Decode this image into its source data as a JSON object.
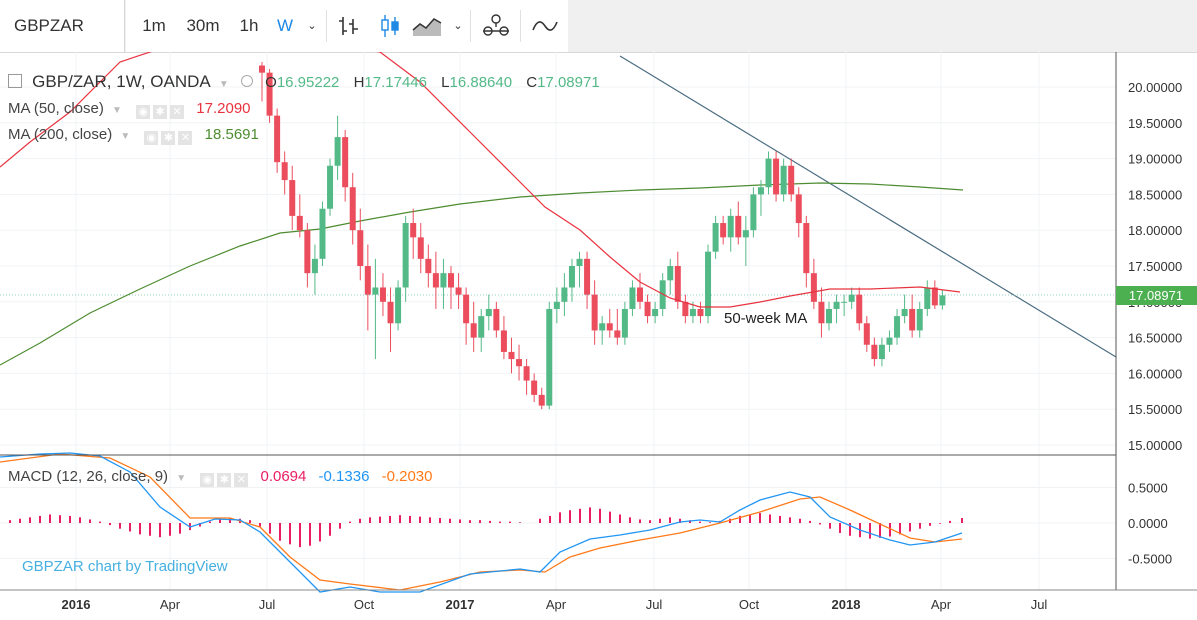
{
  "toolbar": {
    "symbol": "GBPZAR",
    "intervals": [
      "1m",
      "30m",
      "1h",
      "W"
    ],
    "active_interval": "W",
    "icons": [
      "bar-chart-icon",
      "candlestick-icon",
      "area-chart-icon",
      "compare-icon",
      "indicator-icon"
    ]
  },
  "legend": {
    "title": "GBP/ZAR, 1W, OANDA",
    "o_label": "O",
    "o_value": "16.95222",
    "h_label": "H",
    "h_value": "17.17446",
    "l_label": "L",
    "l_value": "16.88640",
    "c_label": "C",
    "c_value": "17.08971",
    "ma50_label": "MA (50, close)",
    "ma50_value": "17.2090",
    "ma200_label": "MA (200, close)",
    "ma200_value": "18.5691",
    "macd_label": "MACD (12, 26, close, 9)",
    "macd_hist": "0.0694",
    "macd_line": "-0.1336",
    "macd_signal": "-0.2030"
  },
  "annotation": "50-week MA",
  "watermark": "GBPZAR chart by TradingView",
  "colors": {
    "up": "#53b987",
    "down": "#eb4d5c",
    "ma50": "#e8333f",
    "ma200": "#4d8c30",
    "macd": "#2196f3",
    "signal": "#ff7a1a",
    "hist": "#e91e63",
    "trend": "#4b6c80",
    "price_label_bg": "#4caf50"
  },
  "chart_data": {
    "type": "candlestick",
    "price_axis_ticks": [
      "15.00000",
      "15.50000",
      "16.00000",
      "16.50000",
      "17.00000",
      "17.50000",
      "18.00000",
      "18.50000",
      "19.00000",
      "19.50000",
      "20.00000"
    ],
    "macd_axis_ticks": [
      "-0.5000",
      "0.0000",
      "0.5000"
    ],
    "time_labels": [
      "2016",
      "Apr",
      "Jul",
      "Oct",
      "2017",
      "Apr",
      "Jul",
      "Oct",
      "2018",
      "Apr",
      "Jul"
    ],
    "last_price": "17.08971",
    "ylim": [
      14.9,
      20.3
    ],
    "candles": [
      [
        20.3,
        20.35,
        19.8,
        20.2
      ],
      [
        20.2,
        20.25,
        19.5,
        19.6
      ],
      [
        19.6,
        19.7,
        18.8,
        18.95
      ],
      [
        18.95,
        19.1,
        18.5,
        18.7
      ],
      [
        18.7,
        18.9,
        18.0,
        18.2
      ],
      [
        18.2,
        18.5,
        17.9,
        18.0
      ],
      [
        18.0,
        18.1,
        17.2,
        17.4
      ],
      [
        17.4,
        17.8,
        17.1,
        17.6
      ],
      [
        17.6,
        18.4,
        17.5,
        18.3
      ],
      [
        18.3,
        19.0,
        18.2,
        18.9
      ],
      [
        18.9,
        19.6,
        18.7,
        19.3
      ],
      [
        19.3,
        19.4,
        18.4,
        18.6
      ],
      [
        18.6,
        18.8,
        17.8,
        18.0
      ],
      [
        18.0,
        18.3,
        17.3,
        17.5
      ],
      [
        17.5,
        17.8,
        16.6,
        17.1
      ],
      [
        17.1,
        17.6,
        16.2,
        17.2
      ],
      [
        17.2,
        17.4,
        16.8,
        17.0
      ],
      [
        17.0,
        17.2,
        16.3,
        16.7
      ],
      [
        16.7,
        17.3,
        16.6,
        17.2
      ],
      [
        17.2,
        18.2,
        17.0,
        18.1
      ],
      [
        18.1,
        18.3,
        17.6,
        17.9
      ],
      [
        17.9,
        18.1,
        17.4,
        17.6
      ],
      [
        17.6,
        17.8,
        17.2,
        17.4
      ],
      [
        17.4,
        17.7,
        16.9,
        17.2
      ],
      [
        17.2,
        17.6,
        16.9,
        17.4
      ],
      [
        17.4,
        17.5,
        16.9,
        17.2
      ],
      [
        17.2,
        17.4,
        16.9,
        17.1
      ],
      [
        17.1,
        17.2,
        16.4,
        16.7
      ],
      [
        16.7,
        17.0,
        16.3,
        16.5
      ],
      [
        16.5,
        16.9,
        16.3,
        16.8
      ],
      [
        16.8,
        17.1,
        16.6,
        16.9
      ],
      [
        16.9,
        17.0,
        16.5,
        16.6
      ],
      [
        16.6,
        16.8,
        16.2,
        16.3
      ],
      [
        16.3,
        16.5,
        16.0,
        16.2
      ],
      [
        16.2,
        16.4,
        15.9,
        16.1
      ],
      [
        16.1,
        16.2,
        15.7,
        15.9
      ],
      [
        15.9,
        16.0,
        15.6,
        15.7
      ],
      [
        15.7,
        15.8,
        15.5,
        15.55
      ],
      [
        15.55,
        17.0,
        15.5,
        16.9
      ],
      [
        16.9,
        17.2,
        16.7,
        17.0
      ],
      [
        17.0,
        17.4,
        16.8,
        17.2
      ],
      [
        17.2,
        17.6,
        17.0,
        17.5
      ],
      [
        17.5,
        17.7,
        17.2,
        17.6
      ],
      [
        17.6,
        17.7,
        16.9,
        17.1
      ],
      [
        17.1,
        17.3,
        16.4,
        16.6
      ],
      [
        16.6,
        16.8,
        16.4,
        16.7
      ],
      [
        16.7,
        16.9,
        16.5,
        16.6
      ],
      [
        16.6,
        16.9,
        16.4,
        16.5
      ],
      [
        16.5,
        17.0,
        16.4,
        16.9
      ],
      [
        16.9,
        17.3,
        16.8,
        17.2
      ],
      [
        17.2,
        17.4,
        16.9,
        17.0
      ],
      [
        17.0,
        17.1,
        16.7,
        16.8
      ],
      [
        16.8,
        17.0,
        16.7,
        16.9
      ],
      [
        16.9,
        17.4,
        16.8,
        17.3
      ],
      [
        17.3,
        17.6,
        17.1,
        17.5
      ],
      [
        17.5,
        17.7,
        16.9,
        17.0
      ],
      [
        17.0,
        17.1,
        16.7,
        16.8
      ],
      [
        16.8,
        17.0,
        16.7,
        16.9
      ],
      [
        16.9,
        17.0,
        16.7,
        16.8
      ],
      [
        16.8,
        17.8,
        16.7,
        17.7
      ],
      [
        17.7,
        18.2,
        17.6,
        18.1
      ],
      [
        18.1,
        18.2,
        17.8,
        17.9
      ],
      [
        17.9,
        18.3,
        17.7,
        18.2
      ],
      [
        18.2,
        18.4,
        17.8,
        17.9
      ],
      [
        17.9,
        18.2,
        17.5,
        18.0
      ],
      [
        18.0,
        18.6,
        17.9,
        18.5
      ],
      [
        18.5,
        18.7,
        18.2,
        18.6
      ],
      [
        18.6,
        19.1,
        18.5,
        19.0
      ],
      [
        19.0,
        19.1,
        18.4,
        18.5
      ],
      [
        18.5,
        19.0,
        18.4,
        18.9
      ],
      [
        18.9,
        19.0,
        18.4,
        18.5
      ],
      [
        18.5,
        18.6,
        17.9,
        18.1
      ],
      [
        18.1,
        18.2,
        17.2,
        17.4
      ],
      [
        17.4,
        17.6,
        16.9,
        17.0
      ],
      [
        17.0,
        17.2,
        16.5,
        16.7
      ],
      [
        16.7,
        17.0,
        16.6,
        16.9
      ],
      [
        16.9,
        17.1,
        16.7,
        17.0
      ],
      [
        17.0,
        17.1,
        16.8,
        17.0
      ],
      [
        17.0,
        17.2,
        16.9,
        17.1
      ],
      [
        17.1,
        17.2,
        16.6,
        16.7
      ],
      [
        16.7,
        16.8,
        16.3,
        16.4
      ],
      [
        16.4,
        16.5,
        16.1,
        16.2
      ],
      [
        16.2,
        16.5,
        16.1,
        16.4
      ],
      [
        16.4,
        16.6,
        16.3,
        16.5
      ],
      [
        16.5,
        16.9,
        16.4,
        16.8
      ],
      [
        16.8,
        17.1,
        16.7,
        16.9
      ],
      [
        16.9,
        17.1,
        16.5,
        16.6
      ],
      [
        16.6,
        17.0,
        16.5,
        16.9
      ],
      [
        16.9,
        17.3,
        16.8,
        17.2
      ],
      [
        17.2,
        17.3,
        16.9,
        16.95
      ],
      [
        16.95,
        17.17,
        16.89,
        17.09
      ]
    ]
  }
}
